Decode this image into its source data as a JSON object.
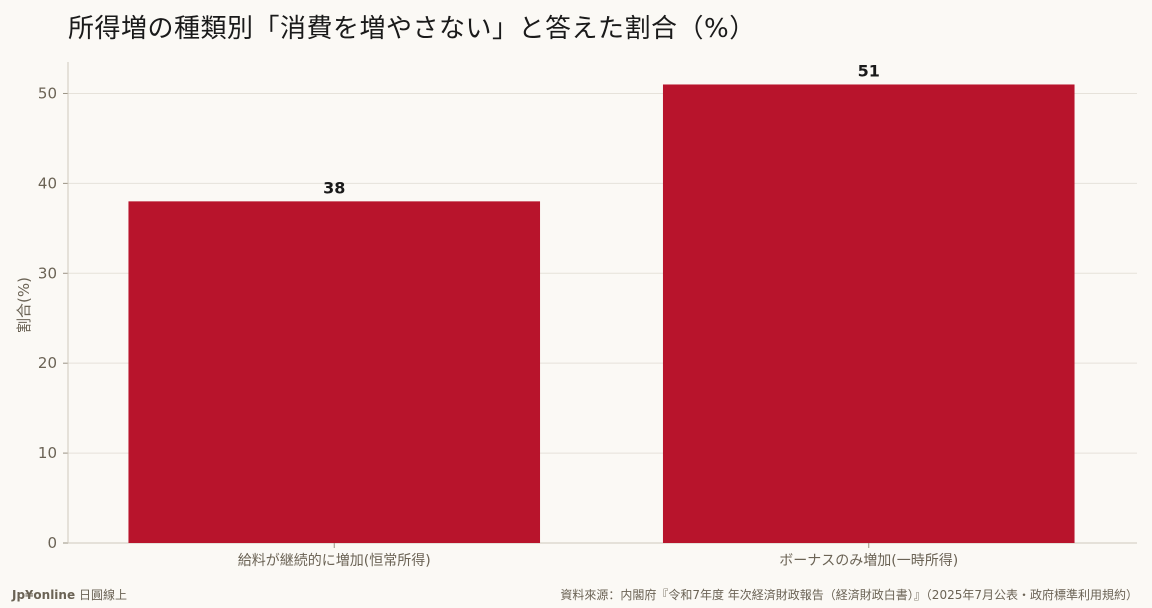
{
  "title": "所得増の種類別「消費を増やさない」と答えた割合（%）",
  "footer": {
    "brand": "Jp¥online",
    "brand_suffix": "日圓線上",
    "source": "資料來源：内閣府『令和7年度 年次経済財政報告（経済財政白書）』（2025年7月公表・政府標準利用規約）"
  },
  "colors": {
    "bar": "#b8142c",
    "background": "#fbf9f5",
    "grid": "#e6e2da",
    "axis_text": "#6b6355"
  },
  "chart_data": {
    "type": "bar",
    "title": "所得増の種類別「消費を増やさない」と答えた割合（%）",
    "categories": [
      "給料が継続的に増加(恒常所得)",
      "ボーナスのみ増加(一時所得)"
    ],
    "values": [
      38,
      51
    ],
    "data_labels": [
      "38",
      "51"
    ],
    "xlabel": "",
    "ylabel": "割合(%)",
    "ylim": [
      0,
      53.5
    ],
    "yticks": [
      0,
      10,
      20,
      30,
      40,
      50
    ],
    "ytick_labels": [
      "0",
      "10",
      "20",
      "30",
      "40",
      "50"
    ],
    "grid": true,
    "legend": "none"
  }
}
